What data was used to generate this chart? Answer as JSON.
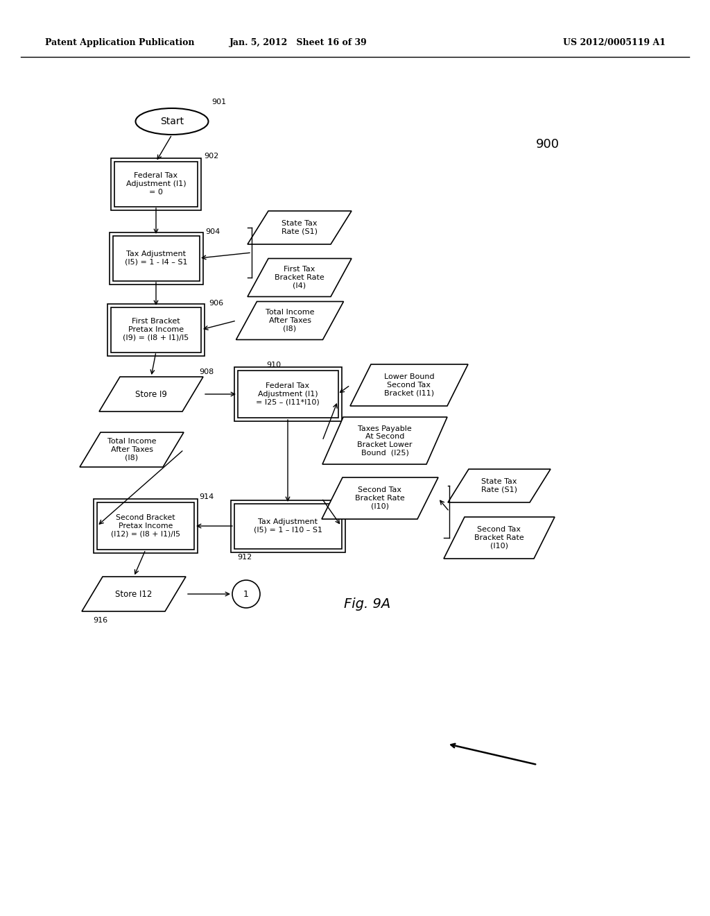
{
  "header_left": "Patent Application Publication",
  "header_center": "Jan. 5, 2012   Sheet 16 of 39",
  "header_right": "US 2012/0005119 A1",
  "fig_label": "Fig. 9A",
  "background_color": "#ffffff"
}
